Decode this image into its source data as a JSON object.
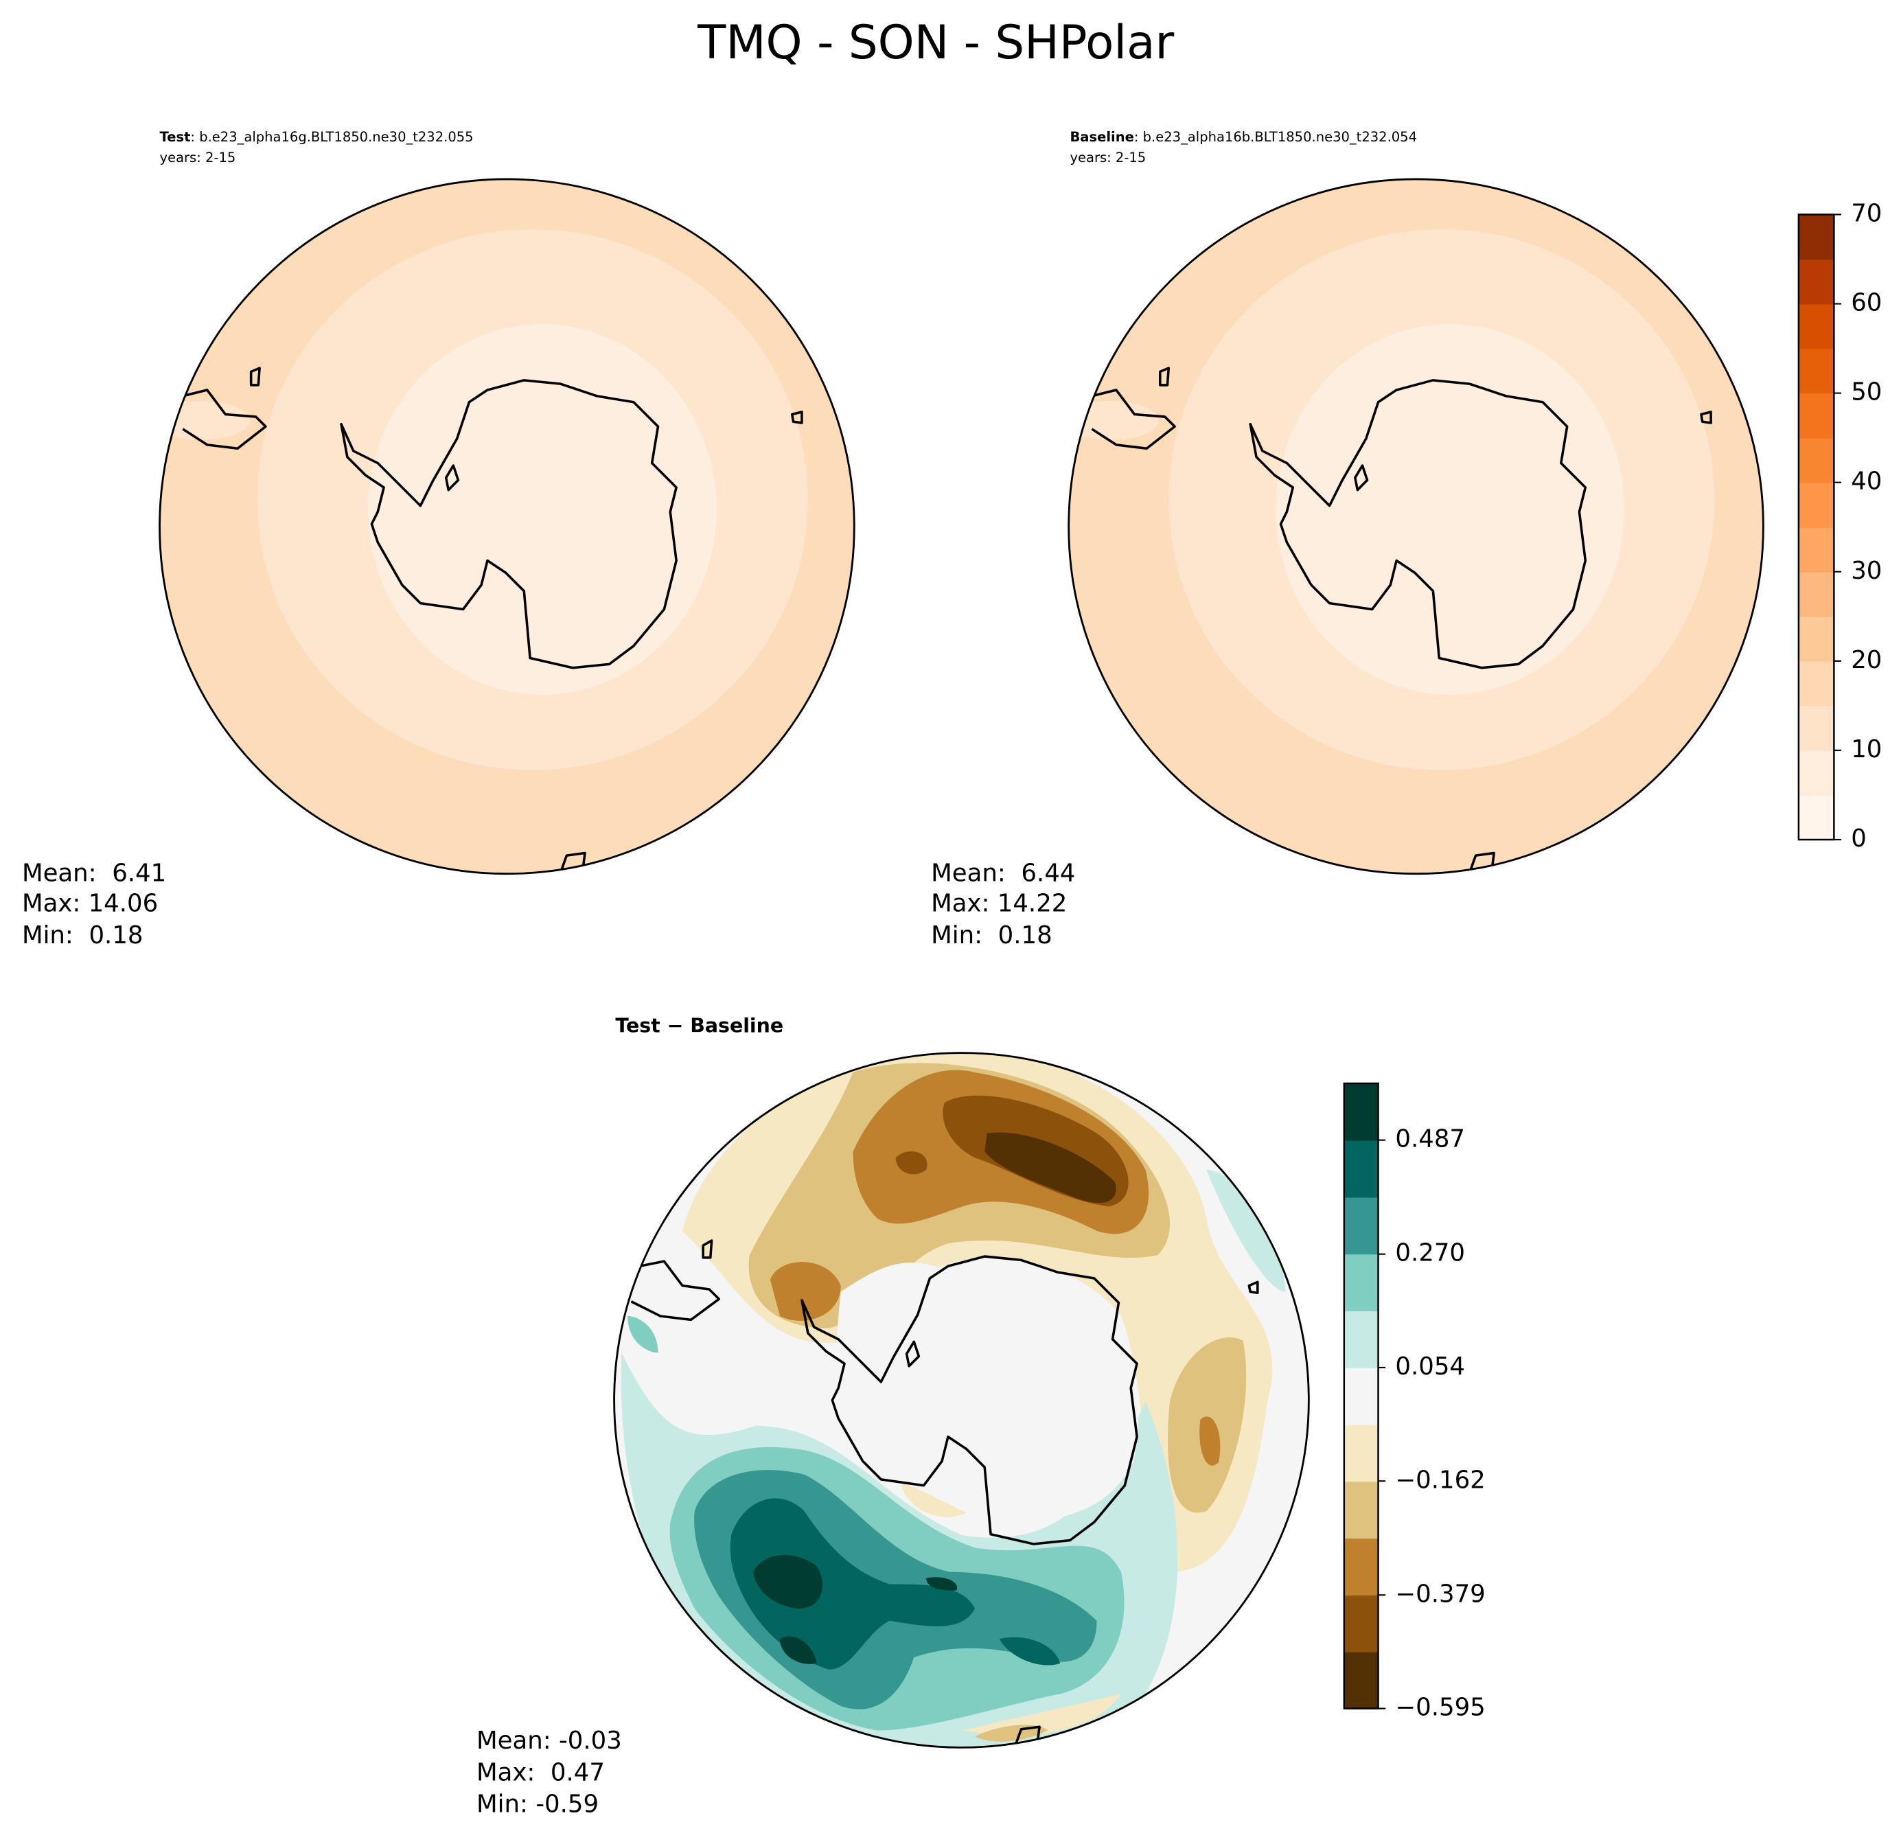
{
  "title": "TMQ - SON - SHPolar",
  "panels": [
    {
      "label_bold": "Test",
      "label_rest": ": b.e23_alpha16g.BLT1850.ne30_t232.055",
      "years": "years: 2-15",
      "stats": [
        "Mean:  6.41",
        "Max: 14.06",
        "Min:  0.18"
      ]
    },
    {
      "label_bold": "Baseline",
      "label_rest": ": b.e23_alpha16b.BLT1850.ne30_t232.054",
      "years": "years: 2-15",
      "stats": [
        "Mean:  6.44",
        "Max: 14.22",
        "Min:  0.18"
      ]
    },
    {
      "label": "Test − Baseline",
      "stats": [
        "Mean: -0.03",
        "Max:  0.47",
        "Min: -0.59"
      ]
    }
  ],
  "colorbars": [
    {
      "ylim": [
        0,
        70
      ],
      "yticks": [
        0,
        10,
        20,
        30,
        40,
        50,
        60,
        70
      ],
      "colors": [
        "#fff5eb",
        "#feeddc",
        "#fee3c8",
        "#fdd8b3",
        "#fdc997",
        "#fdb97d",
        "#fda762",
        "#fd9649",
        "#f8852f",
        "#f3741c",
        "#e6600a",
        "#d94f02",
        "#b83c02",
        "#8f2d04"
      ]
    },
    {
      "ylim": [
        -0.595,
        0.595
      ],
      "yticks": [
        {
          "value": -0.595,
          "label": "−0.595"
        },
        {
          "value": -0.379,
          "label": "−0.379"
        },
        {
          "value": -0.162,
          "label": "−0.162"
        },
        0.054,
        {
          "value": 0.27,
          "label": "0.270"
        },
        0.487
      ],
      "colors": [
        "#543005",
        "#8c510a",
        "#bf812d",
        "#dfc27d",
        "#f6e8c3",
        "#f4f5f4",
        "#c7eae5",
        "#80cdc1",
        "#35978f",
        "#01665e",
        "#003c30"
      ]
    }
  ]
}
